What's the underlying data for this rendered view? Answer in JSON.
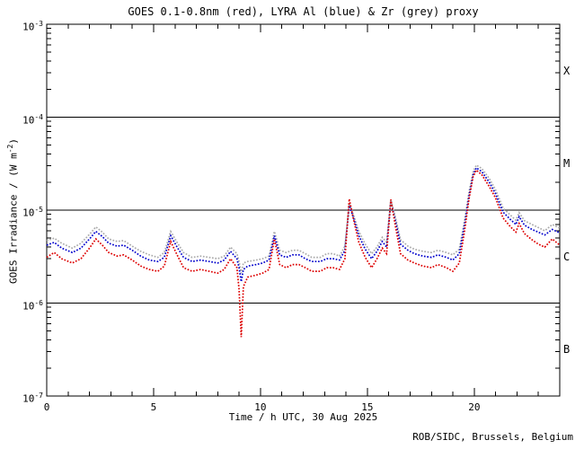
{
  "chart_data": {
    "type": "line",
    "title": "GOES 0.1-0.8nm (red), LYRA Al (blue) & Zr (grey) proxy",
    "xlabel": "Time / h UTC, 30 Aug 2025",
    "ylabel_parts": {
      "pre": "GOES Irradiance / (W m",
      "sup": "-2",
      "post": ")"
    },
    "footer": "ROB/SIDC, Brussels, Belgium",
    "xlim": [
      0,
      24
    ],
    "ylim": [
      1e-07,
      0.001
    ],
    "x_major_ticks": [
      0,
      5,
      10,
      15,
      20
    ],
    "x_minor_step_hours": 1,
    "y_tick_exponents": [
      -3,
      -4,
      -5,
      -6,
      -7
    ],
    "hlines": [
      0.0001,
      1e-05,
      1e-06
    ],
    "grid": "off",
    "legend_position": "in-title",
    "flare_classes": [
      {
        "label": "X",
        "log10_mid": -3.5
      },
      {
        "label": "M",
        "log10_mid": -4.5
      },
      {
        "label": "C",
        "log10_mid": -5.5
      },
      {
        "label": "B",
        "log10_mid": -6.5
      }
    ],
    "axis_color": "#000000",
    "series": [
      {
        "name": "LYRA Zr proxy",
        "color": "#aaaaaa",
        "points": [
          [
            0.0,
            4.7e-06
          ],
          [
            0.35,
            5e-06
          ],
          [
            0.7,
            4.4e-06
          ],
          [
            1.2,
            3.9e-06
          ],
          [
            1.6,
            4.4e-06
          ],
          [
            2.0,
            5.5e-06
          ],
          [
            2.3,
            6.6e-06
          ],
          [
            2.6,
            5.8e-06
          ],
          [
            2.9,
            4.9e-06
          ],
          [
            3.3,
            4.6e-06
          ],
          [
            3.6,
            4.7e-06
          ],
          [
            4.0,
            4.1e-06
          ],
          [
            4.4,
            3.6e-06
          ],
          [
            4.8,
            3.3e-06
          ],
          [
            5.2,
            3.1e-06
          ],
          [
            5.5,
            3.5e-06
          ],
          [
            5.8,
            5.9e-06
          ],
          [
            6.1,
            4.5e-06
          ],
          [
            6.4,
            3.5e-06
          ],
          [
            6.8,
            3.1e-06
          ],
          [
            7.2,
            3.2e-06
          ],
          [
            7.6,
            3.1e-06
          ],
          [
            8.0,
            3e-06
          ],
          [
            8.3,
            3.2e-06
          ],
          [
            8.6,
            4e-06
          ],
          [
            8.9,
            3.4e-06
          ],
          [
            9.0,
            2.8e-06
          ],
          [
            9.1,
            2.1e-06
          ],
          [
            9.2,
            2.7e-06
          ],
          [
            9.4,
            2.8e-06
          ],
          [
            9.8,
            2.9e-06
          ],
          [
            10.1,
            3e-06
          ],
          [
            10.4,
            3.2e-06
          ],
          [
            10.65,
            5.9e-06
          ],
          [
            10.9,
            3.7e-06
          ],
          [
            11.2,
            3.5e-06
          ],
          [
            11.5,
            3.7e-06
          ],
          [
            11.8,
            3.7e-06
          ],
          [
            12.1,
            3.4e-06
          ],
          [
            12.4,
            3.1e-06
          ],
          [
            12.8,
            3.1e-06
          ],
          [
            13.1,
            3.4e-06
          ],
          [
            13.4,
            3.4e-06
          ],
          [
            13.7,
            3.2e-06
          ],
          [
            13.95,
            4.1e-06
          ],
          [
            14.15,
            1.18e-05
          ],
          [
            14.35,
            8.9e-06
          ],
          [
            14.6,
            5.9e-06
          ],
          [
            14.9,
            4.3e-06
          ],
          [
            15.2,
            3.4e-06
          ],
          [
            15.45,
            4e-06
          ],
          [
            15.7,
            5.1e-06
          ],
          [
            15.9,
            4.5e-06
          ],
          [
            16.1,
            1.3e-05
          ],
          [
            16.3,
            8.6e-06
          ],
          [
            16.55,
            4.8e-06
          ],
          [
            16.9,
            4.1e-06
          ],
          [
            17.2,
            3.8e-06
          ],
          [
            17.6,
            3.6e-06
          ],
          [
            18.0,
            3.5e-06
          ],
          [
            18.3,
            3.7e-06
          ],
          [
            18.7,
            3.5e-06
          ],
          [
            19.0,
            3.3e-06
          ],
          [
            19.3,
            3.8e-06
          ],
          [
            19.55,
            7.8e-06
          ],
          [
            19.75,
            1.55e-05
          ],
          [
            19.95,
            2.6e-05
          ],
          [
            20.1,
            3.05e-05
          ],
          [
            20.35,
            2.8e-05
          ],
          [
            20.7,
            2.2e-05
          ],
          [
            21.0,
            1.65e-05
          ],
          [
            21.35,
            1.05e-05
          ],
          [
            21.7,
            8.8e-06
          ],
          [
            21.95,
            7.8e-06
          ],
          [
            22.1,
            9.4e-06
          ],
          [
            22.35,
            7.7e-06
          ],
          [
            22.7,
            7e-06
          ],
          [
            23.0,
            6.5e-06
          ],
          [
            23.3,
            6e-06
          ],
          [
            23.65,
            7e-06
          ],
          [
            24.0,
            6.4e-06
          ]
        ]
      },
      {
        "name": "LYRA Al proxy",
        "color": "#0000cc",
        "points": [
          [
            0.0,
            4.2e-06
          ],
          [
            0.35,
            4.5e-06
          ],
          [
            0.7,
            3.9e-06
          ],
          [
            1.2,
            3.5e-06
          ],
          [
            1.6,
            3.9e-06
          ],
          [
            2.0,
            4.9e-06
          ],
          [
            2.3,
            5.9e-06
          ],
          [
            2.6,
            5.2e-06
          ],
          [
            2.9,
            4.4e-06
          ],
          [
            3.3,
            4.1e-06
          ],
          [
            3.6,
            4.2e-06
          ],
          [
            4.0,
            3.7e-06
          ],
          [
            4.4,
            3.2e-06
          ],
          [
            4.8,
            2.9e-06
          ],
          [
            5.2,
            2.8e-06
          ],
          [
            5.5,
            3.1e-06
          ],
          [
            5.8,
            5.3e-06
          ],
          [
            6.1,
            4e-06
          ],
          [
            6.4,
            3.1e-06
          ],
          [
            6.8,
            2.8e-06
          ],
          [
            7.2,
            2.9e-06
          ],
          [
            7.6,
            2.8e-06
          ],
          [
            8.0,
            2.7e-06
          ],
          [
            8.3,
            2.9e-06
          ],
          [
            8.6,
            3.6e-06
          ],
          [
            8.9,
            3e-06
          ],
          [
            9.0,
            2.4e-06
          ],
          [
            9.1,
            1.7e-06
          ],
          [
            9.2,
            2.3e-06
          ],
          [
            9.4,
            2.5e-06
          ],
          [
            9.8,
            2.6e-06
          ],
          [
            10.1,
            2.7e-06
          ],
          [
            10.4,
            2.9e-06
          ],
          [
            10.65,
            5.3e-06
          ],
          [
            10.9,
            3.3e-06
          ],
          [
            11.2,
            3.1e-06
          ],
          [
            11.5,
            3.3e-06
          ],
          [
            11.8,
            3.3e-06
          ],
          [
            12.1,
            3e-06
          ],
          [
            12.4,
            2.8e-06
          ],
          [
            12.8,
            2.8e-06
          ],
          [
            13.1,
            3e-06
          ],
          [
            13.4,
            3e-06
          ],
          [
            13.7,
            2.9e-06
          ],
          [
            13.95,
            3.7e-06
          ],
          [
            14.15,
            1.12e-05
          ],
          [
            14.35,
            8.3e-06
          ],
          [
            14.6,
            5.3e-06
          ],
          [
            14.9,
            3.8e-06
          ],
          [
            15.2,
            3e-06
          ],
          [
            15.45,
            3.6e-06
          ],
          [
            15.7,
            4.6e-06
          ],
          [
            15.9,
            4e-06
          ],
          [
            16.1,
            1.25e-05
          ],
          [
            16.3,
            7.9e-06
          ],
          [
            16.55,
            4.3e-06
          ],
          [
            16.9,
            3.7e-06
          ],
          [
            17.2,
            3.4e-06
          ],
          [
            17.6,
            3.2e-06
          ],
          [
            18.0,
            3.1e-06
          ],
          [
            18.3,
            3.3e-06
          ],
          [
            18.7,
            3.1e-06
          ],
          [
            19.0,
            2.9e-06
          ],
          [
            19.3,
            3.4e-06
          ],
          [
            19.55,
            7e-06
          ],
          [
            19.75,
            1.4e-05
          ],
          [
            19.95,
            2.4e-05
          ],
          [
            20.1,
            2.85e-05
          ],
          [
            20.35,
            2.6e-05
          ],
          [
            20.7,
            2e-05
          ],
          [
            21.0,
            1.5e-05
          ],
          [
            21.35,
            9.5e-06
          ],
          [
            21.7,
            7.9e-06
          ],
          [
            21.95,
            7e-06
          ],
          [
            22.1,
            8.5e-06
          ],
          [
            22.35,
            6.9e-06
          ],
          [
            22.7,
            6.2e-06
          ],
          [
            23.0,
            5.8e-06
          ],
          [
            23.3,
            5.4e-06
          ],
          [
            23.65,
            6.2e-06
          ],
          [
            24.0,
            5.7e-06
          ]
        ]
      },
      {
        "name": "GOES 0.1-0.8nm",
        "color": "#dd0000",
        "points": [
          [
            0.0,
            3.1e-06
          ],
          [
            0.35,
            3.5e-06
          ],
          [
            0.7,
            3e-06
          ],
          [
            1.2,
            2.7e-06
          ],
          [
            1.6,
            3e-06
          ],
          [
            2.0,
            3.9e-06
          ],
          [
            2.3,
            4.9e-06
          ],
          [
            2.6,
            4.2e-06
          ],
          [
            2.9,
            3.5e-06
          ],
          [
            3.3,
            3.2e-06
          ],
          [
            3.6,
            3.3e-06
          ],
          [
            4.0,
            2.9e-06
          ],
          [
            4.4,
            2.5e-06
          ],
          [
            4.8,
            2.3e-06
          ],
          [
            5.2,
            2.2e-06
          ],
          [
            5.5,
            2.5e-06
          ],
          [
            5.8,
            4.6e-06
          ],
          [
            6.1,
            3.3e-06
          ],
          [
            6.4,
            2.4e-06
          ],
          [
            6.8,
            2.2e-06
          ],
          [
            7.2,
            2.3e-06
          ],
          [
            7.6,
            2.2e-06
          ],
          [
            8.0,
            2.1e-06
          ],
          [
            8.3,
            2.3e-06
          ],
          [
            8.6,
            3e-06
          ],
          [
            8.9,
            2.4e-06
          ],
          [
            9.0,
            1.4e-06
          ],
          [
            9.1,
            4.3e-07
          ],
          [
            9.2,
            1.5e-06
          ],
          [
            9.4,
            1.9e-06
          ],
          [
            9.8,
            2e-06
          ],
          [
            10.1,
            2.1e-06
          ],
          [
            10.4,
            2.3e-06
          ],
          [
            10.65,
            4.9e-06
          ],
          [
            10.9,
            2.6e-06
          ],
          [
            11.2,
            2.4e-06
          ],
          [
            11.5,
            2.6e-06
          ],
          [
            11.8,
            2.6e-06
          ],
          [
            12.1,
            2.4e-06
          ],
          [
            12.4,
            2.2e-06
          ],
          [
            12.8,
            2.2e-06
          ],
          [
            13.1,
            2.4e-06
          ],
          [
            13.4,
            2.4e-06
          ],
          [
            13.7,
            2.3e-06
          ],
          [
            13.95,
            3e-06
          ],
          [
            14.15,
            1.32e-05
          ],
          [
            14.35,
            8e-06
          ],
          [
            14.6,
            4.5e-06
          ],
          [
            14.9,
            3.1e-06
          ],
          [
            15.2,
            2.4e-06
          ],
          [
            15.45,
            3e-06
          ],
          [
            15.7,
            3.9e-06
          ],
          [
            15.9,
            3.4e-06
          ],
          [
            16.1,
            1.3e-05
          ],
          [
            16.3,
            7e-06
          ],
          [
            16.55,
            3.4e-06
          ],
          [
            16.9,
            2.9e-06
          ],
          [
            17.2,
            2.7e-06
          ],
          [
            17.6,
            2.5e-06
          ],
          [
            18.0,
            2.4e-06
          ],
          [
            18.3,
            2.6e-06
          ],
          [
            18.7,
            2.4e-06
          ],
          [
            19.0,
            2.2e-06
          ],
          [
            19.3,
            2.7e-06
          ],
          [
            19.55,
            6e-06
          ],
          [
            19.75,
            1.3e-05
          ],
          [
            19.95,
            2.3e-05
          ],
          [
            20.1,
            2.7e-05
          ],
          [
            20.35,
            2.4e-05
          ],
          [
            20.7,
            1.8e-05
          ],
          [
            21.0,
            1.35e-05
          ],
          [
            21.35,
            8.2e-06
          ],
          [
            21.7,
            6.6e-06
          ],
          [
            21.95,
            5.8e-06
          ],
          [
            22.1,
            7.2e-06
          ],
          [
            22.35,
            5.6e-06
          ],
          [
            22.7,
            4.8e-06
          ],
          [
            23.0,
            4.3e-06
          ],
          [
            23.3,
            4e-06
          ],
          [
            23.65,
            4.9e-06
          ],
          [
            24.0,
            4.2e-06
          ]
        ]
      }
    ]
  }
}
